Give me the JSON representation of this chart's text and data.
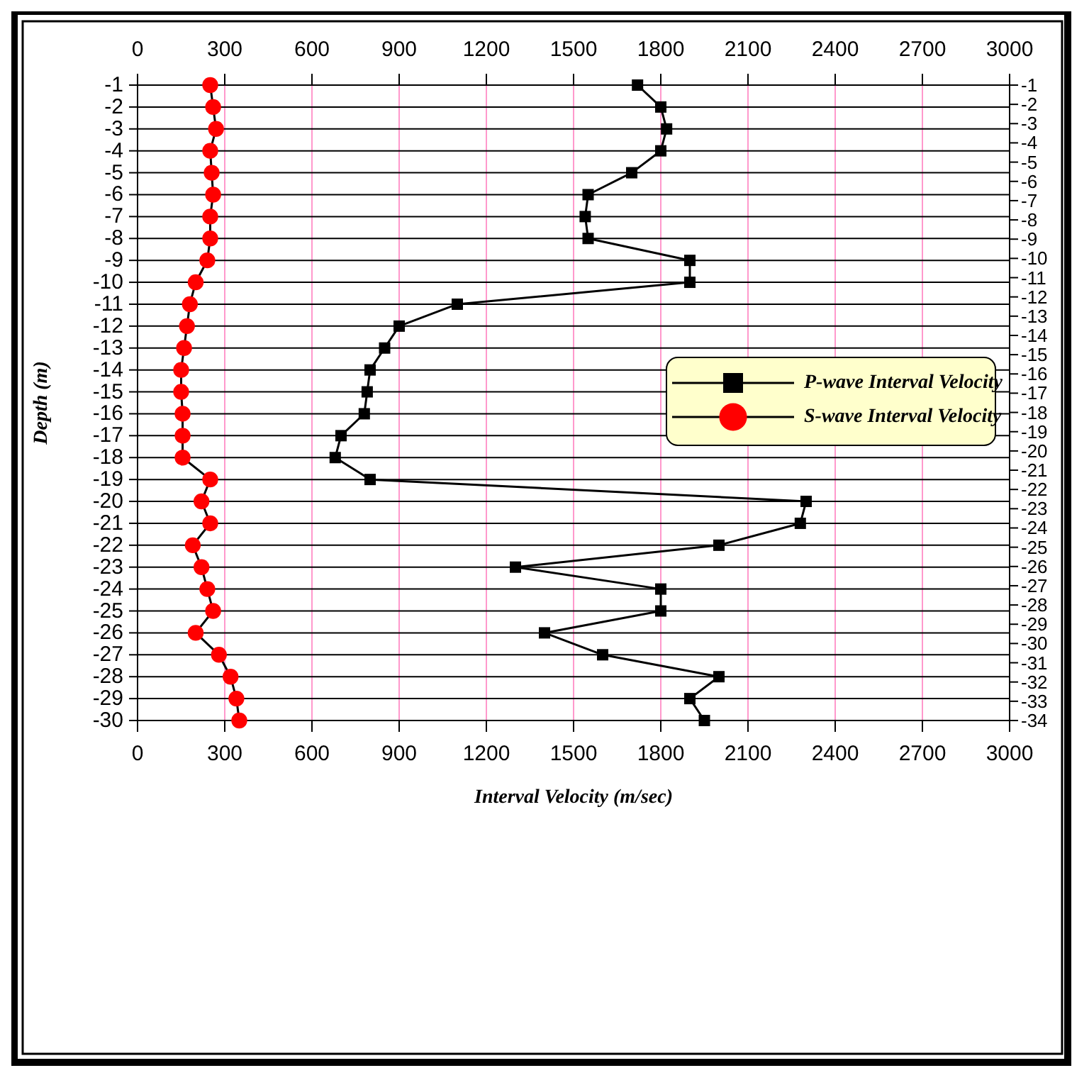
{
  "chart_data": {
    "type": "line",
    "xlabel": "Interval Velocity (m/sec)",
    "ylabel": "Depth (m)",
    "x": [
      -1,
      -2,
      -3,
      -4,
      -5,
      -6,
      -7,
      -8,
      -9,
      -10,
      -11,
      -12,
      -13,
      -14,
      -15,
      -16,
      -17,
      -18,
      -19,
      -20,
      -21,
      -22,
      -23,
      -24,
      -25,
      -26,
      -27,
      -28,
      -29,
      -30
    ],
    "orientation": "horizontal",
    "series": [
      {
        "name": "P-wave Interval Velocity",
        "color": "#000000",
        "marker": "square",
        "values": [
          1720,
          1800,
          1820,
          1800,
          1700,
          1550,
          1540,
          1550,
          1900,
          1900,
          1100,
          900,
          850,
          800,
          790,
          780,
          700,
          680,
          800,
          2300,
          2280,
          2000,
          1300,
          1800,
          1800,
          1400,
          1600,
          2000,
          1900,
          1950
        ]
      },
      {
        "name": "S-wave Interval Velocity",
        "color": "#ff0000",
        "marker": "circle",
        "values": [
          250,
          260,
          270,
          250,
          255,
          260,
          250,
          250,
          240,
          200,
          180,
          170,
          160,
          150,
          150,
          155,
          155,
          155,
          250,
          220,
          250,
          190,
          220,
          240,
          260,
          200,
          280,
          320,
          340,
          350
        ]
      }
    ],
    "xlim": [
      0,
      3000
    ],
    "xticks": [
      0,
      300,
      600,
      900,
      1200,
      1500,
      1800,
      2100,
      2400,
      2700,
      3000
    ],
    "x2lim": [
      0,
      3000
    ],
    "x2ticks": [
      0,
      300,
      600,
      900,
      1200,
      1500,
      1800,
      2100,
      2400,
      2700,
      3000
    ],
    "ylim": [
      -30,
      -1
    ],
    "yticks": [
      -1,
      -2,
      -3,
      -4,
      -5,
      -6,
      -7,
      -8,
      -9,
      -10,
      -11,
      -12,
      -13,
      -14,
      -15,
      -16,
      -17,
      -18,
      -19,
      -20,
      -21,
      -22,
      -23,
      -24,
      -25,
      -26,
      -27,
      -28,
      -29,
      -30
    ],
    "y2lim": [
      -34,
      -1
    ],
    "y2ticks": [
      -1,
      -2,
      -3,
      -4,
      -5,
      -6,
      -7,
      -8,
      -9,
      -10,
      -11,
      -12,
      -13,
      -14,
      -15,
      -16,
      -17,
      -18,
      -19,
      -20,
      -21,
      -22,
      -23,
      -24,
      -25,
      -26,
      -27,
      -28,
      -29,
      -30,
      -31,
      -32,
      -33,
      -34
    ],
    "grid": true,
    "legend": "right",
    "line_style": "solid"
  }
}
